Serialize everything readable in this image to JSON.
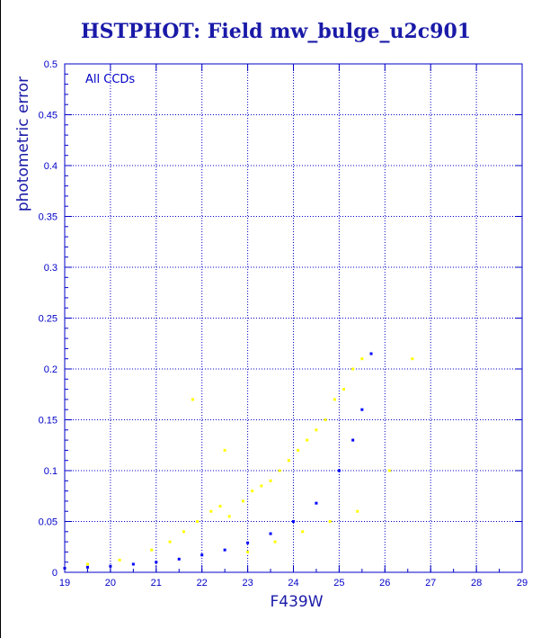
{
  "chart_data": {
    "type": "scatter",
    "title": "HSTPHOT: Field mw_bulge_u2c901",
    "xlabel": "F439W",
    "ylabel": "photometric error",
    "annotation": "All CCDs",
    "xlim": [
      19,
      29
    ],
    "ylim": [
      0,
      0.5
    ],
    "xticks": [
      19,
      20,
      21,
      22,
      23,
      24,
      25,
      26,
      27,
      28,
      29
    ],
    "yticks": [
      0,
      0.05,
      0.1,
      0.15,
      0.2,
      0.25,
      0.3,
      0.35,
      0.4,
      0.45,
      0.5
    ],
    "ytick_labels": [
      "0",
      "0.05",
      "0.1",
      "0.15",
      "0.2",
      "0.25",
      "0.3",
      "0.35",
      "0.4",
      "0.45",
      "0.5"
    ],
    "grid": true,
    "series": [
      {
        "color": "#ffff00",
        "x": [
          19.5,
          20.2,
          20.9,
          21.3,
          21.6,
          21.9,
          22.2,
          22.4,
          22.6,
          22.9,
          23.1,
          23.3,
          23.5,
          23.7,
          23.9,
          24.1,
          24.3,
          24.5,
          24.7,
          24.9,
          25.1,
          25.3,
          25.5,
          21.8,
          22.5,
          23.0,
          23.6,
          24.2,
          24.8,
          25.4,
          26.1,
          26.6
        ],
        "y": [
          0.008,
          0.012,
          0.022,
          0.03,
          0.04,
          0.05,
          0.06,
          0.065,
          0.055,
          0.07,
          0.08,
          0.085,
          0.09,
          0.1,
          0.11,
          0.12,
          0.13,
          0.14,
          0.15,
          0.17,
          0.18,
          0.2,
          0.21,
          0.17,
          0.12,
          0.02,
          0.03,
          0.04,
          0.05,
          0.06,
          0.1,
          0.21
        ]
      },
      {
        "color": "#0000ff",
        "x": [
          19.0,
          19.5,
          20.0,
          20.5,
          21.0,
          21.5,
          22.0,
          22.5,
          23.0,
          23.5,
          24.0,
          24.5,
          25.0,
          25.3,
          25.5,
          25.7
        ],
        "y": [
          0.004,
          0.005,
          0.006,
          0.008,
          0.01,
          0.013,
          0.017,
          0.022,
          0.029,
          0.038,
          0.05,
          0.068,
          0.1,
          0.13,
          0.16,
          0.215
        ]
      }
    ]
  }
}
